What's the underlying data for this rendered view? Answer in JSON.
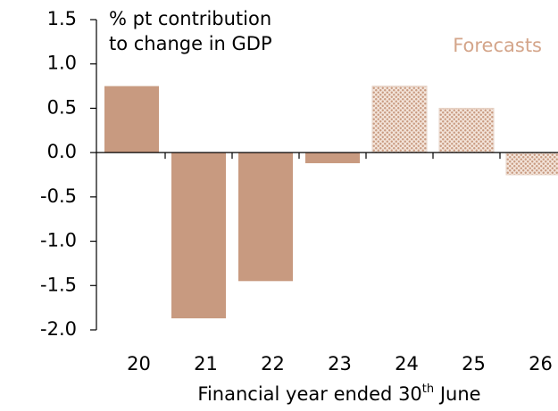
{
  "chart_data": {
    "type": "bar",
    "annotations": [
      "% pt contribution",
      "to change in GDP",
      "Forecasts"
    ],
    "x_label_parts": [
      "Financial year ended 30",
      "th",
      " June"
    ],
    "categories": [
      "20",
      "21",
      "22",
      "23",
      "24",
      "25",
      "26"
    ],
    "values": [
      0.75,
      -1.87,
      -1.45,
      -0.12,
      0.75,
      0.5,
      -0.25
    ],
    "forecast": [
      false,
      false,
      false,
      false,
      true,
      true,
      true
    ],
    "color": "#c89a80",
    "ylim": [
      -2.0,
      1.5
    ],
    "yticks": [
      {
        "value": 1.5,
        "label": "1.5"
      },
      {
        "value": 1.0,
        "label": "1.0"
      },
      {
        "value": 0.5,
        "label": "0.5"
      },
      {
        "value": 0.0,
        "label": "0.0"
      },
      {
        "value": -0.5,
        "label": "-0.5"
      },
      {
        "value": -1.0,
        "label": "-1.0"
      },
      {
        "value": -1.5,
        "label": "-1.5"
      },
      {
        "value": -2.0,
        "label": "-2.0"
      }
    ],
    "grid": false
  }
}
